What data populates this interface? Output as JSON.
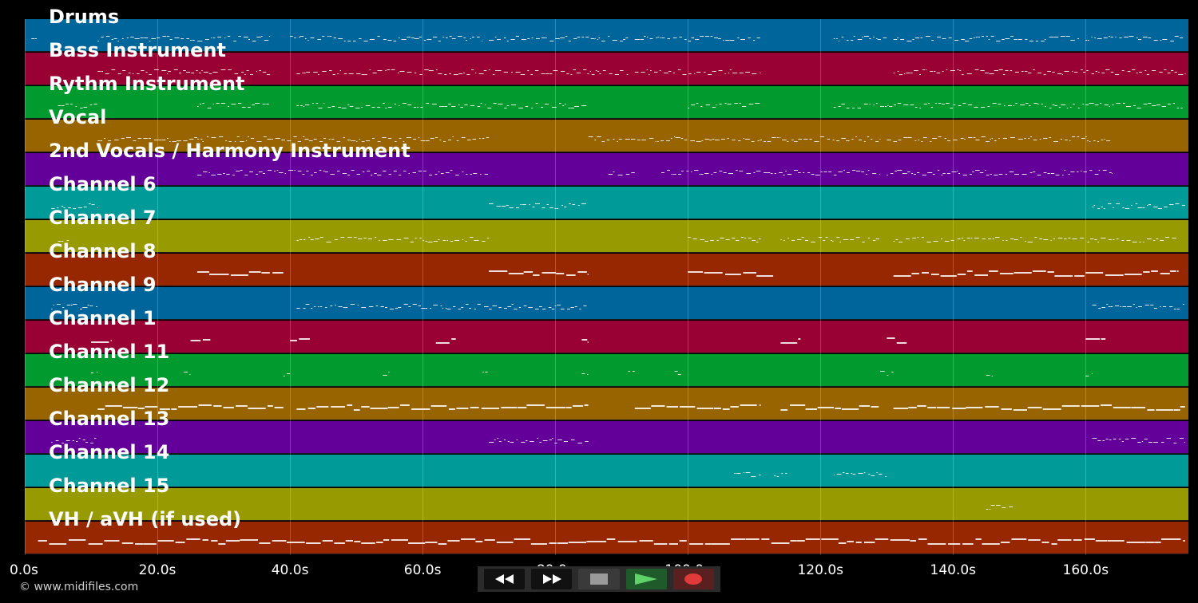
{
  "tracks": [
    {
      "label": "Drums",
      "color": "#00659a"
    },
    {
      "label": "Bass Instrument",
      "color": "#990033"
    },
    {
      "label": "Rythm Instrument",
      "color": "#009a2e"
    },
    {
      "label": "Vocal",
      "color": "#976400"
    },
    {
      "label": "2nd Vocals / Harmony Instrument",
      "color": "#63009a"
    },
    {
      "label": "Channel 6",
      "color": "#009a98"
    },
    {
      "label": "Channel 7",
      "color": "#979a00"
    },
    {
      "label": "Channel 8",
      "color": "#972700"
    },
    {
      "label": "Channel 9",
      "color": "#00659a"
    },
    {
      "label": "Channel 1",
      "color": "#990033"
    },
    {
      "label": "Channel 11",
      "color": "#009a2e"
    },
    {
      "label": "Channel 12",
      "color": "#976400"
    },
    {
      "label": "Channel 13",
      "color": "#63009a"
    },
    {
      "label": "Channel 14",
      "color": "#009a98"
    },
    {
      "label": "Channel 15",
      "color": "#979a00"
    },
    {
      "label": "VH / aVH (if used)",
      "color": "#972700"
    }
  ],
  "timeline": {
    "max_seconds": 175.5,
    "ticks": [
      "0.0s",
      "20.0s",
      "40.0s",
      "60.0s",
      "80.0s",
      "100.0s",
      "120.0s",
      "140.0s",
      "160.0s"
    ],
    "tick_values": [
      0,
      20,
      40,
      60,
      80,
      100,
      120,
      140,
      160
    ]
  },
  "copyright": "© www.midifiles.com",
  "controls": {
    "rewind": "rewind-icon",
    "fast_forward": "fast-forward-icon",
    "stop": "stop-icon",
    "play": "play-icon",
    "record": "record-icon"
  }
}
